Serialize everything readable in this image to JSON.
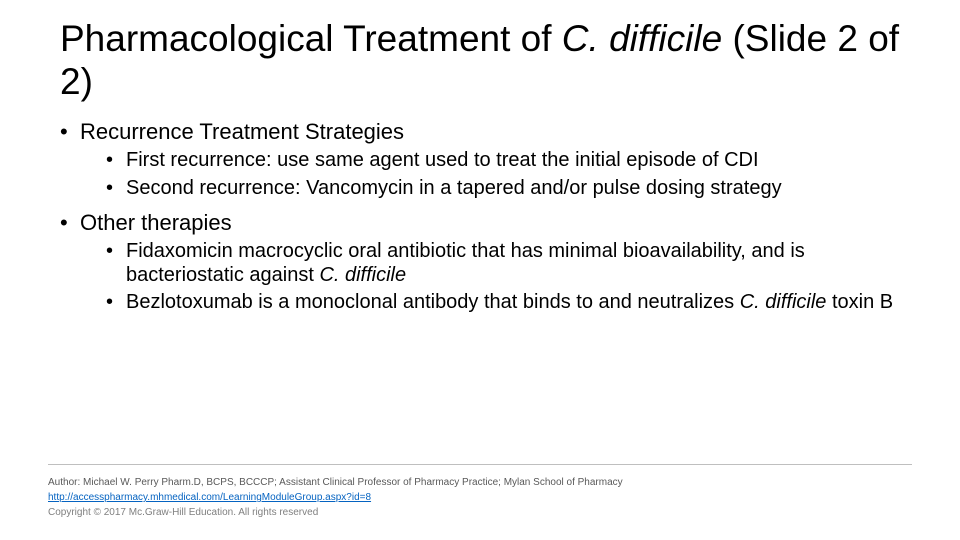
{
  "title": {
    "prefix": "Pharmacological Treatment of ",
    "italic": "C. difficile",
    "suffix": " (Slide 2 of 2)"
  },
  "sections": [
    {
      "heading": "Recurrence Treatment Strategies",
      "items": [
        {
          "text": "First recurrence: use same agent used to treat the initial episode of CDI"
        },
        {
          "text": "Second recurrence: Vancomycin in a tapered and/or pulse dosing strategy"
        }
      ]
    },
    {
      "heading": "Other therapies",
      "items": [
        {
          "pre": "Fidaxomicin macrocyclic oral antibiotic that has minimal bioavailability, and is bacteriostatic against ",
          "italic": "C. difficile",
          "post": ""
        },
        {
          "pre": "Bezlotoxumab is a monoclonal antibody that binds to and neutralizes ",
          "italic": "C. difficile",
          "post": " toxin B"
        }
      ]
    }
  ],
  "footer": {
    "author": "Author: Michael W. Perry Pharm.D, BCPS, BCCCP; Assistant Clinical Professor of Pharmacy Practice; Mylan School of Pharmacy",
    "link": "http://accesspharmacy.mhmedical.com/LearningModuleGroup.aspx?id=8",
    "copyright": "Copyright © 2017 Mc.Graw-Hill Education. All rights reserved"
  },
  "style": {
    "background_color": "#ffffff",
    "text_color": "#000000",
    "title_fontsize": 37,
    "body_fontsize": 22,
    "sub_fontsize": 20,
    "footer_fontsize": 10,
    "footer_color": "#7f7f7f",
    "author_color": "#595959",
    "link_color": "#0563c1",
    "divider_color": "#bfbfbf",
    "font_family": "Arial"
  }
}
